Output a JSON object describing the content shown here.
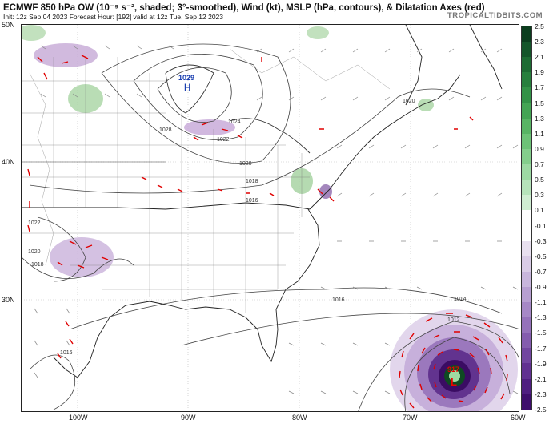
{
  "header": {
    "title": "ECMWF 850 hPa OW (10⁻⁹ s⁻², shaded; 3°-smoothed), Wind (kt), MSLP (hPa, contours), & Dilatation Axes (red)",
    "init_line": "Init: 12z Sep 04 2023   Forecast Hour: [192]   valid at 12z Tue, Sep 12 2023",
    "credit": "TROPICALTIDBITS.COM"
  },
  "map": {
    "lat_labels": [
      "50N",
      "40N",
      "30N"
    ],
    "lon_labels": [
      "100W",
      "90W",
      "80W",
      "70W",
      "60W"
    ],
    "high": {
      "value": "1029",
      "symbol": "H"
    },
    "low": {
      "value": "917",
      "symbol": "L"
    },
    "isobar_labels": [
      "1028",
      "1024",
      "1022",
      "1020",
      "1020",
      "1018",
      "1016",
      "1022",
      "1020",
      "1018",
      "1016",
      "1016",
      "1014",
      "1012"
    ]
  },
  "colorbar": {
    "labels": [
      "2.5",
      "2.3",
      "2.1",
      "1.9",
      "1.7",
      "1.5",
      "1.3",
      "1.1",
      "0.9",
      "0.7",
      "0.5",
      "0.3",
      "0.1",
      "-0.1",
      "-0.3",
      "-0.5",
      "-0.7",
      "-0.9",
      "-1.1",
      "-1.3",
      "-1.5",
      "-1.7",
      "-1.9",
      "-2.1",
      "-2.3",
      "-2.5"
    ],
    "colors": [
      "#0b3d1e",
      "#14552a",
      "#1d6b33",
      "#277f3d",
      "#339247",
      "#44a454",
      "#58b464",
      "#6dc277",
      "#84ce8c",
      "#9dd9a3",
      "#b6e3ba",
      "#d0edd2",
      "#ffffff",
      "#ffffff",
      "#e8e0ef",
      "#d9cce6",
      "#c8b6dc",
      "#b79fd1",
      "#a688c6",
      "#9572ba",
      "#845cae",
      "#7246a0",
      "#613191",
      "#4f1e80",
      "#3e0e6c"
    ]
  },
  "icons": {
    "high_center": "blue-H-icon",
    "low_center": "red-L-icon"
  }
}
